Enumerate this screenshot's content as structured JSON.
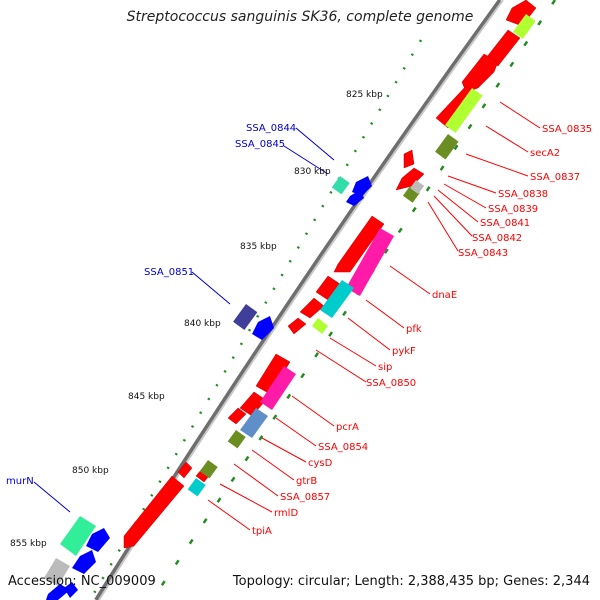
{
  "title": "Streptococcus sanguinis SK36, complete genome",
  "footer": {
    "accession": "Accession: NC_009009",
    "topology": "Topology: circular; Length: 2,388,435 bp; Genes: 2,344"
  },
  "colors": {
    "backbone": "#777777",
    "forward_gene": "#ff0000",
    "reverse_gene": "#0000ff",
    "label_red": "#ff0000",
    "label_blue": "#0000cc",
    "dotted_ring": "#228b22"
  },
  "tick_labels": [
    "825 kbp",
    "830 kbp",
    "835 kbp",
    "840 kbp",
    "845 kbp",
    "850 kbp",
    "855 kbp"
  ],
  "left_labels": [
    "SSA_0844",
    "SSA_0845",
    "SSA_0851",
    "murN"
  ],
  "right_labels": [
    "SSA_0835",
    "secA2",
    "SSA_0837",
    "SSA_0838",
    "SSA_0839",
    "SSA_0841",
    "SSA_0842",
    "SSA_0843",
    "dnaE",
    "pfk",
    "pykF",
    "sip",
    "SSA_0850",
    "pcrA",
    "SSA_0854",
    "cysD",
    "gtrB",
    "SSA_0857",
    "rmlD",
    "tpiA"
  ]
}
